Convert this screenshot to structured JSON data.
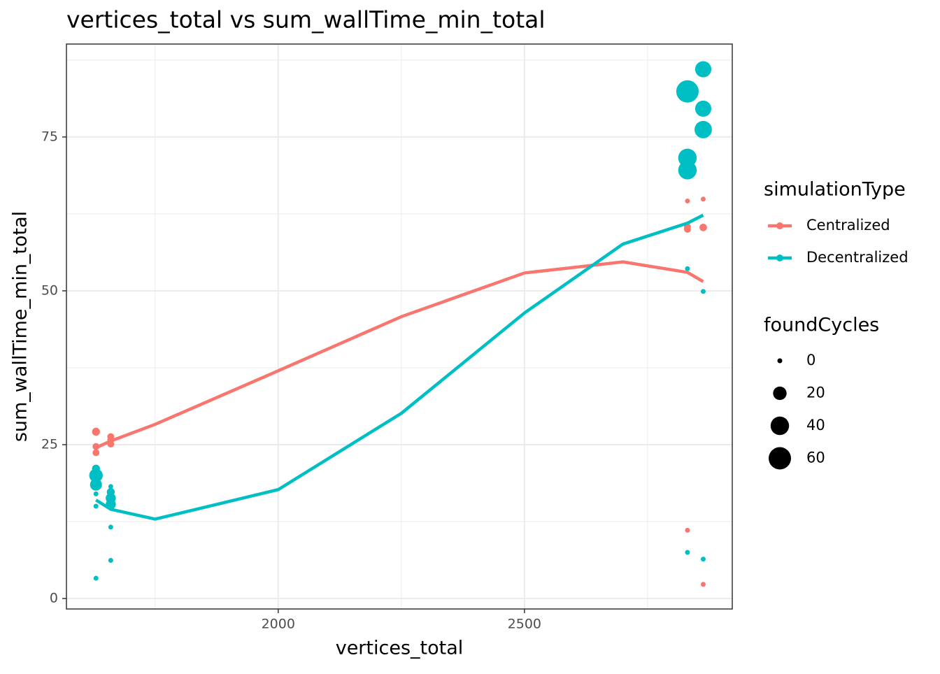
{
  "chart_data": {
    "type": "scatter",
    "title": "vertices_total  vs  sum_wallTime_min_total",
    "x_label": "vertices_total",
    "y_label": "sum_wallTime_min_total",
    "xlim": [
      1570,
      2922
    ],
    "ylim": [
      -1.7,
      90.1
    ],
    "xticks": [
      2000,
      2500
    ],
    "yticks": [
      0,
      25,
      50,
      75
    ],
    "minor_xticks": [
      1750,
      2250,
      2750
    ],
    "minor_yticks": [
      12.5,
      37.5,
      62.5,
      87.5
    ],
    "grid": true,
    "color_legend_title": "simulationType",
    "size_legend": {
      "title": "foundCycles",
      "values": [
        0,
        20,
        40,
        60
      ]
    },
    "series": [
      {
        "name": "Centralized",
        "color": "#f8766d",
        "x": [
          1630,
          1630,
          1630,
          1630,
          1660,
          1660,
          1660,
          2831,
          2831,
          2831,
          2831,
          2863,
          2863,
          2863
        ],
        "values": [
          27.1,
          24.7,
          23.7,
          21.1,
          26.3,
          25.8,
          25.1,
          64.6,
          60.4,
          60.0,
          11.1,
          64.9,
          60.3,
          2.3
        ],
        "sizes": [
          5,
          3,
          3,
          1,
          3,
          3,
          3,
          0,
          3,
          3,
          0,
          0,
          4,
          0
        ],
        "smooth_x": [
          1630,
          1660,
          1750,
          2000,
          2250,
          2500,
          2700,
          2831,
          2863
        ],
        "smooth_values": [
          24.5,
          25.6,
          28.3,
          37.0,
          45.8,
          52.9,
          54.7,
          53.0,
          51.5
        ]
      },
      {
        "name": "Decentralized",
        "color": "#00bfc4",
        "x": [
          1630,
          1630,
          1630,
          1630,
          1630,
          1630,
          1660,
          1660,
          1660,
          1660,
          1660,
          1660,
          2831,
          2831,
          2831,
          2831,
          2831,
          2863,
          2863,
          2863,
          2863,
          2863
        ],
        "values": [
          21.1,
          20.0,
          18.5,
          17.0,
          15.0,
          3.3,
          18.2,
          17.3,
          16.3,
          15.3,
          11.6,
          6.2,
          82.4,
          71.6,
          69.6,
          53.6,
          7.5,
          86.0,
          79.6,
          76.2,
          49.9,
          6.4
        ],
        "sizes": [
          5,
          20,
          15,
          0,
          0,
          0,
          0,
          5,
          10,
          10,
          0,
          0,
          60,
          40,
          40,
          0,
          0,
          30,
          30,
          35,
          0,
          0
        ],
        "smooth_x": [
          1630,
          1660,
          1750,
          2000,
          2250,
          2500,
          2700,
          2831,
          2863
        ],
        "smooth_values": [
          16.0,
          14.5,
          12.9,
          17.7,
          30.1,
          46.4,
          57.6,
          61.0,
          62.3
        ]
      }
    ]
  }
}
